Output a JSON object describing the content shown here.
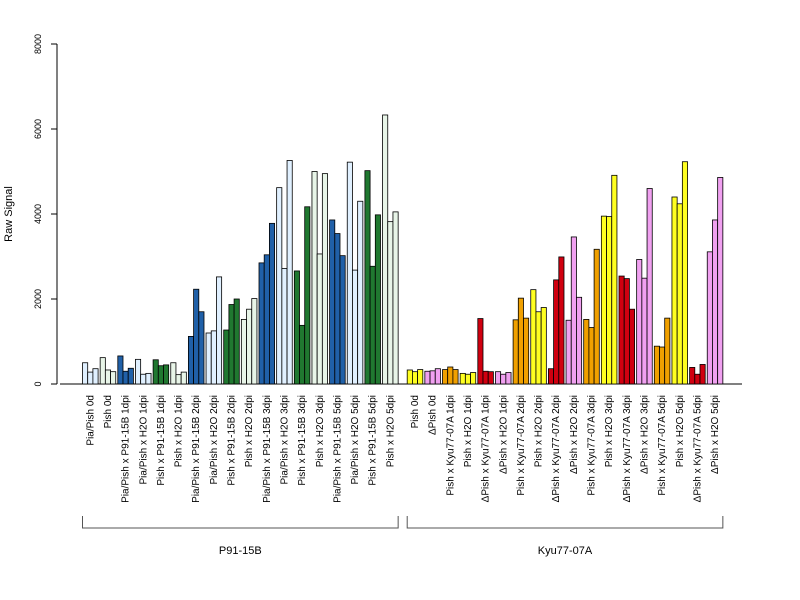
{
  "chart_data": {
    "type": "bar",
    "ylabel": "Raw Signal",
    "ylim": [
      0,
      8000
    ],
    "yticks": [
      0,
      2000,
      4000,
      6000,
      8000
    ],
    "grid": false,
    "groups": [
      {
        "name": "P91-15B",
        "categories": [
          {
            "label": "Pia/Pish 0d",
            "color": "#e0f0ff",
            "values": [
              500,
              280,
              360
            ]
          },
          {
            "label": "Pish 0d",
            "color": "#e8f5e8",
            "values": [
              620,
              330,
              290
            ]
          },
          {
            "label": "Pia/Pish x P91-15B 1dpi",
            "color": "#2060a8",
            "values": [
              660,
              300,
              370
            ]
          },
          {
            "label": "Pia/Pish x H2O 1dpi",
            "color": "#e0f0ff",
            "values": [
              580,
              230,
              250
            ]
          },
          {
            "label": "Pish x P91-15B 1dpi",
            "color": "#207830",
            "values": [
              570,
              430,
              450
            ]
          },
          {
            "label": "Pish x H2O 1dpi",
            "color": "#e8f5e8",
            "values": [
              500,
              220,
              280
            ]
          },
          {
            "label": "Pia/Pish x P91-15B 2dpi",
            "color": "#2060a8",
            "values": [
              1120,
              2230,
              1700
            ]
          },
          {
            "label": "Pia/Pish x H2O 2dpi",
            "color": "#e0f0ff",
            "values": [
              1200,
              1250,
              2520
            ]
          },
          {
            "label": "Pish x P91-15B 2dpi",
            "color": "#207830",
            "values": [
              1270,
              1870,
              2000
            ]
          },
          {
            "label": "Pish x H2O 2dpi",
            "color": "#e8f5e8",
            "values": [
              1520,
              1760,
              2010
            ]
          },
          {
            "label": "Pia/Pish x P91-15B 3dpi",
            "color": "#2060a8",
            "values": [
              2850,
              3040,
              3780
            ]
          },
          {
            "label": "Pia/Pish x H2O 3dpi",
            "color": "#e0f0ff",
            "values": [
              4620,
              2720,
              5260
            ]
          },
          {
            "label": "Pish x P91-15B 3dpi",
            "color": "#207830",
            "values": [
              2660,
              1380,
              4170
            ]
          },
          {
            "label": "Pish x H2O 3dpi",
            "color": "#e8f5e8",
            "values": [
              5000,
              3060,
              4950
            ]
          },
          {
            "label": "Pia/Pish x P91-15B 5dpi",
            "color": "#2060a8",
            "values": [
              3860,
              3540,
              3020
            ]
          },
          {
            "label": "Pia/Pish x H2O 5dpi",
            "color": "#e0f0ff",
            "values": [
              5220,
              2680,
              4300
            ]
          },
          {
            "label": "Pish x P91-15B 5dpi",
            "color": "#207830",
            "values": [
              5020,
              2770,
              3980
            ]
          },
          {
            "label": "Pish x H2O 5dpi",
            "color": "#e8f5e8",
            "values": [
              6330,
              3820,
              4050
            ]
          }
        ]
      },
      {
        "name": "Kyu77-07A",
        "categories": [
          {
            "label": "Pish 0d",
            "color": "#ffff20",
            "values": [
              330,
              290,
              340
            ]
          },
          {
            "label": "ΔPish 0d",
            "color": "#f0a0f0",
            "values": [
              300,
              310,
              360
            ]
          },
          {
            "label": "Pish x Kyu77-07A 1dpi",
            "color": "#f0a000",
            "values": [
              340,
              400,
              340
            ]
          },
          {
            "label": "Pish x H2O 1dpi",
            "color": "#ffff20",
            "values": [
              250,
              230,
              270
            ]
          },
          {
            "label": "ΔPish x Kyu77-07A 1dpi",
            "color": "#d00010",
            "values": [
              1540,
              300,
              290
            ]
          },
          {
            "label": "ΔPish x H2O 1dpi",
            "color": "#f0a0f0",
            "values": [
              290,
              230,
              270
            ]
          },
          {
            "label": "Pish x Kyu77-07A 2dpi",
            "color": "#f0a000",
            "values": [
              1510,
              2020,
              1550
            ]
          },
          {
            "label": "Pish x H2O 2dpi",
            "color": "#ffff20",
            "values": [
              2220,
              1700,
              1800
            ]
          },
          {
            "label": "ΔPish x Kyu77-07A 2dpi",
            "color": "#d00010",
            "values": [
              360,
              2450,
              2990
            ]
          },
          {
            "label": "ΔPish x H2O 2dpi",
            "color": "#f0a0f0",
            "values": [
              1500,
              3460,
              2040
            ]
          },
          {
            "label": "Pish x Kyu77-07A 3dpi",
            "color": "#f0a000",
            "values": [
              1520,
              1330,
              3170
            ]
          },
          {
            "label": "Pish x H2O 3dpi",
            "color": "#ffff20",
            "values": [
              3950,
              3940,
              4910
            ]
          },
          {
            "label": "ΔPish x Kyu77-07A 3dpi",
            "color": "#d00010",
            "values": [
              2540,
              2480,
              1760
            ]
          },
          {
            "label": "ΔPish x H2O 3dpi",
            "color": "#f0a0f0",
            "values": [
              2930,
              2490,
              4600
            ]
          },
          {
            "label": "Pish x Kyu77-07A 5dpi",
            "color": "#f0a000",
            "values": [
              890,
              870,
              1550
            ]
          },
          {
            "label": "Pish x H2O 5dpi",
            "color": "#ffff20",
            "values": [
              4400,
              4240,
              5230
            ]
          },
          {
            "label": "ΔPish x Kyu77-07A 5dpi",
            "color": "#d00010",
            "values": [
              390,
              230,
              460
            ]
          },
          {
            "label": "ΔPish x H2O 5dpi",
            "color": "#f0a0f0",
            "values": [
              3110,
              3860,
              4860
            ]
          }
        ]
      }
    ]
  }
}
